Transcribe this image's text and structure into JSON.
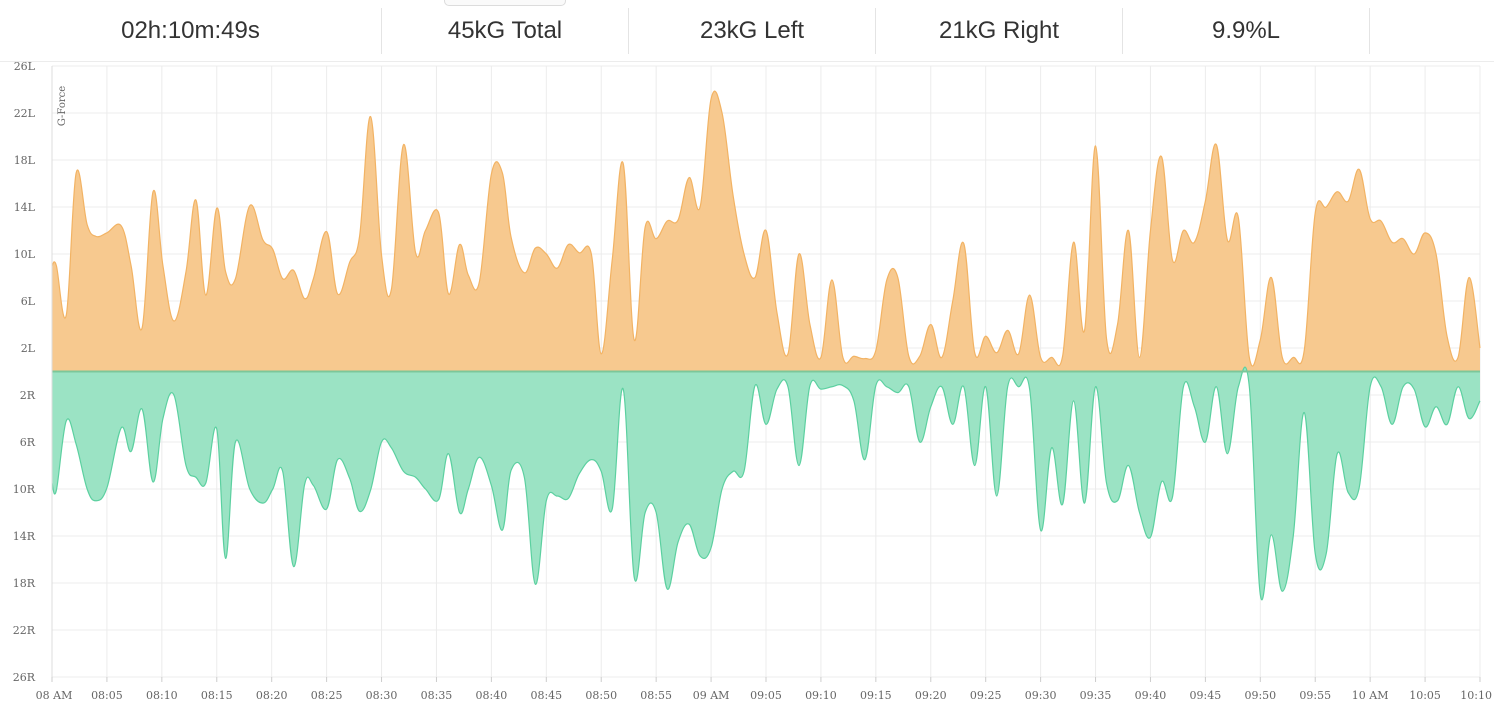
{
  "stats": {
    "duration": "02h:10m:49s",
    "total": "45kG Total",
    "left": "23kG Left",
    "right": "21kG Right",
    "percent": "9.9%L"
  },
  "chart_data": {
    "type": "area",
    "ylabel": "G-Force",
    "ylim": [
      -26,
      26
    ],
    "y_ticks": [
      {
        "value": 26,
        "label": "26L"
      },
      {
        "value": 22,
        "label": "22L"
      },
      {
        "value": 18,
        "label": "18L"
      },
      {
        "value": 14,
        "label": "14L"
      },
      {
        "value": 10,
        "label": "10L"
      },
      {
        "value": 6,
        "label": "6L"
      },
      {
        "value": 2,
        "label": "2L"
      },
      {
        "value": -2,
        "label": "2R"
      },
      {
        "value": -6,
        "label": "6R"
      },
      {
        "value": -10,
        "label": "10R"
      },
      {
        "value": -14,
        "label": "14R"
      },
      {
        "value": -18,
        "label": "18R"
      },
      {
        "value": -22,
        "label": "22R"
      },
      {
        "value": -26,
        "label": "26R"
      }
    ],
    "x_range_minutes": [
      0,
      130
    ],
    "x_ticks": [
      {
        "t": 0,
        "label": "08 AM"
      },
      {
        "t": 5,
        "label": "08:05"
      },
      {
        "t": 10,
        "label": "08:10"
      },
      {
        "t": 15,
        "label": "08:15"
      },
      {
        "t": 20,
        "label": "08:20"
      },
      {
        "t": 25,
        "label": "08:25"
      },
      {
        "t": 30,
        "label": "08:30"
      },
      {
        "t": 35,
        "label": "08:35"
      },
      {
        "t": 40,
        "label": "08:40"
      },
      {
        "t": 45,
        "label": "08:45"
      },
      {
        "t": 50,
        "label": "08:50"
      },
      {
        "t": 55,
        "label": "08:55"
      },
      {
        "t": 60,
        "label": "09 AM"
      },
      {
        "t": 65,
        "label": "09:05"
      },
      {
        "t": 70,
        "label": "09:10"
      },
      {
        "t": 75,
        "label": "09:15"
      },
      {
        "t": 80,
        "label": "09:20"
      },
      {
        "t": 85,
        "label": "09:25"
      },
      {
        "t": 90,
        "label": "09:30"
      },
      {
        "t": 95,
        "label": "09:35"
      },
      {
        "t": 100,
        "label": "09:40"
      },
      {
        "t": 105,
        "label": "09:45"
      },
      {
        "t": 110,
        "label": "09:50"
      },
      {
        "t": 115,
        "label": "09:55"
      },
      {
        "t": 120,
        "label": "10 AM"
      },
      {
        "t": 125,
        "label": "10:05"
      },
      {
        "t": 130,
        "label": "10:10"
      }
    ],
    "colors": {
      "left_fill": "#f7c98f",
      "left_line": "#f2b364",
      "right_fill": "#9be3c4",
      "right_line": "#5cd0a0",
      "baseline": "#7cc79a",
      "grid": "#ececec"
    },
    "series": [
      {
        "name": "",
        "side": "left",
        "points": [
          [
            0,
            9
          ],
          [
            0.4,
            9
          ],
          [
            1.3,
            4.8
          ],
          [
            2.2,
            16.9
          ],
          [
            3.2,
            12.5
          ],
          [
            4,
            11.5
          ],
          [
            5,
            11.8
          ],
          [
            6.3,
            12.4
          ],
          [
            7.2,
            9
          ],
          [
            8.2,
            3.7
          ],
          [
            9.2,
            15.3
          ],
          [
            10.1,
            9
          ],
          [
            11.1,
            4.3
          ],
          [
            12.2,
            8.5
          ],
          [
            13.1,
            14.6
          ],
          [
            14,
            6.5
          ],
          [
            15,
            13.9
          ],
          [
            15.8,
            8.5
          ],
          [
            16.7,
            7.9
          ],
          [
            18,
            14.1
          ],
          [
            19.2,
            11.2
          ],
          [
            20.1,
            10.4
          ],
          [
            21,
            7.9
          ],
          [
            22,
            8.6
          ],
          [
            23,
            6.2
          ],
          [
            23.8,
            7.9
          ],
          [
            25,
            11.9
          ],
          [
            26,
            6.6
          ],
          [
            27.1,
            9.3
          ],
          [
            28,
            11.5
          ],
          [
            29,
            21.7
          ],
          [
            30,
            9.9
          ],
          [
            30.9,
            7
          ],
          [
            32,
            19.3
          ],
          [
            33.1,
            10.1
          ],
          [
            34,
            12
          ],
          [
            35.2,
            13.5
          ],
          [
            36.1,
            6.6
          ],
          [
            37.1,
            10.8
          ],
          [
            37.9,
            8.2
          ],
          [
            38.9,
            7.6
          ],
          [
            40,
            16.8
          ],
          [
            41,
            16.9
          ],
          [
            41.8,
            11.4
          ],
          [
            43,
            8.4
          ],
          [
            44,
            10.5
          ],
          [
            45,
            10
          ],
          [
            46,
            8.8
          ],
          [
            47,
            10.8
          ],
          [
            48,
            10.1
          ],
          [
            49.1,
            10
          ],
          [
            50,
            1.5
          ],
          [
            51,
            9.5
          ],
          [
            52,
            17.7
          ],
          [
            53,
            2.7
          ],
          [
            54,
            12.3
          ],
          [
            55,
            11.3
          ],
          [
            56,
            12.8
          ],
          [
            57,
            12.9
          ],
          [
            58,
            16.5
          ],
          [
            59,
            14
          ],
          [
            60,
            23.2
          ],
          [
            61,
            22
          ],
          [
            62,
            15
          ],
          [
            63,
            10
          ],
          [
            64,
            8
          ],
          [
            65,
            12
          ],
          [
            66,
            5
          ],
          [
            67,
            1.5
          ],
          [
            68,
            10
          ],
          [
            69,
            4
          ],
          [
            70,
            1.2
          ],
          [
            71,
            7.8
          ],
          [
            72,
            1.2
          ],
          [
            73,
            1.3
          ],
          [
            74,
            1.1
          ],
          [
            75,
            1.8
          ],
          [
            76,
            7.8
          ],
          [
            77,
            8
          ],
          [
            78,
            1.3
          ],
          [
            79,
            1.3
          ],
          [
            80,
            4
          ],
          [
            81,
            1.2
          ],
          [
            82,
            6
          ],
          [
            83,
            10.9
          ],
          [
            84,
            1.6
          ],
          [
            85,
            3
          ],
          [
            86,
            1.6
          ],
          [
            87,
            3.5
          ],
          [
            88,
            1.5
          ],
          [
            89,
            6.5
          ],
          [
            90,
            1.2
          ],
          [
            91,
            1.2
          ],
          [
            92,
            1.3
          ],
          [
            93,
            11
          ],
          [
            94,
            3.5
          ],
          [
            95,
            19.2
          ],
          [
            96,
            2.8
          ],
          [
            97,
            4
          ],
          [
            98,
            12
          ],
          [
            99,
            1.2
          ],
          [
            100,
            12
          ],
          [
            101,
            18.3
          ],
          [
            102,
            9.5
          ],
          [
            103,
            12
          ],
          [
            104,
            11
          ],
          [
            105,
            14.5
          ],
          [
            106,
            19.3
          ],
          [
            107,
            11.2
          ],
          [
            108,
            13.1
          ],
          [
            109,
            1.2
          ],
          [
            110,
            2.7
          ],
          [
            111,
            8
          ],
          [
            112,
            1.2
          ],
          [
            113,
            1.2
          ],
          [
            114,
            1.8
          ],
          [
            115,
            13.5
          ],
          [
            116,
            14
          ],
          [
            117,
            15.3
          ],
          [
            118,
            14.5
          ],
          [
            119,
            17.2
          ],
          [
            120,
            13
          ],
          [
            121,
            12.8
          ],
          [
            122,
            11
          ],
          [
            123,
            11.3
          ],
          [
            124,
            10
          ],
          [
            125,
            11.8
          ],
          [
            126,
            10
          ],
          [
            127,
            3
          ],
          [
            128,
            1.2
          ],
          [
            129,
            8
          ],
          [
            130,
            2
          ]
        ]
      },
      {
        "name": "",
        "side": "right",
        "points": [
          [
            0,
            -9.5
          ],
          [
            0.4,
            -10.1
          ],
          [
            1.3,
            -4.2
          ],
          [
            2.2,
            -6.2
          ],
          [
            3.2,
            -10
          ],
          [
            4,
            -11
          ],
          [
            5,
            -9.9
          ],
          [
            6.3,
            -4.8
          ],
          [
            7.2,
            -6.8
          ],
          [
            8.2,
            -3.2
          ],
          [
            9.2,
            -9.4
          ],
          [
            10.1,
            -4
          ],
          [
            11.1,
            -2
          ],
          [
            12.2,
            -8
          ],
          [
            13.1,
            -9
          ],
          [
            14,
            -9.5
          ],
          [
            15,
            -4.9
          ],
          [
            15.8,
            -15.9
          ],
          [
            16.7,
            -6
          ],
          [
            18,
            -10
          ],
          [
            19.2,
            -11.2
          ],
          [
            20.1,
            -10
          ],
          [
            21,
            -8.5
          ],
          [
            22,
            -16.6
          ],
          [
            23,
            -9.6
          ],
          [
            23.8,
            -9.7
          ],
          [
            25,
            -11.7
          ],
          [
            26,
            -7.5
          ],
          [
            27.1,
            -9.1
          ],
          [
            28,
            -11.9
          ],
          [
            29,
            -10.1
          ],
          [
            30,
            -6
          ],
          [
            30.9,
            -6.5
          ],
          [
            32,
            -8.5
          ],
          [
            33.1,
            -9
          ],
          [
            34,
            -10
          ],
          [
            35.2,
            -10.9
          ],
          [
            36.1,
            -7
          ],
          [
            37.1,
            -12
          ],
          [
            37.9,
            -10
          ],
          [
            38.9,
            -7.3
          ],
          [
            40,
            -9.7
          ],
          [
            41,
            -13.5
          ],
          [
            41.8,
            -8.4
          ],
          [
            43,
            -9
          ],
          [
            44,
            -18.1
          ],
          [
            45,
            -11
          ],
          [
            46,
            -10.6
          ],
          [
            47,
            -10.8
          ],
          [
            48,
            -8.7
          ],
          [
            49.1,
            -7.5
          ],
          [
            50,
            -8.5
          ],
          [
            51,
            -11.7
          ],
          [
            52,
            -1.5
          ],
          [
            53,
            -17.5
          ],
          [
            54,
            -12
          ],
          [
            55,
            -12
          ],
          [
            56,
            -18.5
          ],
          [
            57,
            -14.5
          ],
          [
            58,
            -13
          ],
          [
            59,
            -15.7
          ],
          [
            60,
            -15
          ],
          [
            61,
            -10
          ],
          [
            62,
            -8.5
          ],
          [
            63,
            -8.5
          ],
          [
            64,
            -1.2
          ],
          [
            65,
            -4.5
          ],
          [
            66,
            -1.5
          ],
          [
            67,
            -1.3
          ],
          [
            68,
            -8
          ],
          [
            69,
            -1.2
          ],
          [
            70,
            -1.5
          ],
          [
            71,
            -1.3
          ],
          [
            72,
            -1.2
          ],
          [
            73,
            -2.5
          ],
          [
            74,
            -7.5
          ],
          [
            75,
            -1.2
          ],
          [
            76,
            -1.3
          ],
          [
            77,
            -1.8
          ],
          [
            78,
            -1.3
          ],
          [
            79,
            -6
          ],
          [
            80,
            -3
          ],
          [
            81,
            -1.3
          ],
          [
            82,
            -4.5
          ],
          [
            83,
            -1.3
          ],
          [
            84,
            -8
          ],
          [
            85,
            -1.3
          ],
          [
            86,
            -10.6
          ],
          [
            87,
            -1.3
          ],
          [
            88,
            -1.3
          ],
          [
            89,
            -1.5
          ],
          [
            90,
            -13.5
          ],
          [
            91,
            -6.5
          ],
          [
            92,
            -11.3
          ],
          [
            93,
            -2.5
          ],
          [
            94,
            -11.2
          ],
          [
            95,
            -1.3
          ],
          [
            96,
            -9.5
          ],
          [
            97,
            -11
          ],
          [
            98,
            -8
          ],
          [
            99,
            -12
          ],
          [
            100,
            -14.1
          ],
          [
            101,
            -9.4
          ],
          [
            102,
            -10.7
          ],
          [
            103,
            -1.3
          ],
          [
            104,
            -3
          ],
          [
            105,
            -6
          ],
          [
            106,
            -1.3
          ],
          [
            107,
            -7
          ],
          [
            108,
            -1.3
          ],
          [
            109,
            -1.3
          ],
          [
            110,
            -19
          ],
          [
            111,
            -13.9
          ],
          [
            112,
            -18.7
          ],
          [
            113,
            -14
          ],
          [
            114,
            -3.5
          ],
          [
            115,
            -15.5
          ],
          [
            116,
            -15.5
          ],
          [
            117,
            -7
          ],
          [
            118,
            -10.3
          ],
          [
            119,
            -9.9
          ],
          [
            120,
            -1.3
          ],
          [
            121,
            -1.3
          ],
          [
            122,
            -4.5
          ],
          [
            123,
            -1.3
          ],
          [
            124,
            -1.5
          ],
          [
            125,
            -4.7
          ],
          [
            126,
            -3
          ],
          [
            127,
            -4.5
          ],
          [
            128,
            -1.3
          ],
          [
            129,
            -4
          ],
          [
            130,
            -2.5
          ]
        ]
      }
    ]
  }
}
